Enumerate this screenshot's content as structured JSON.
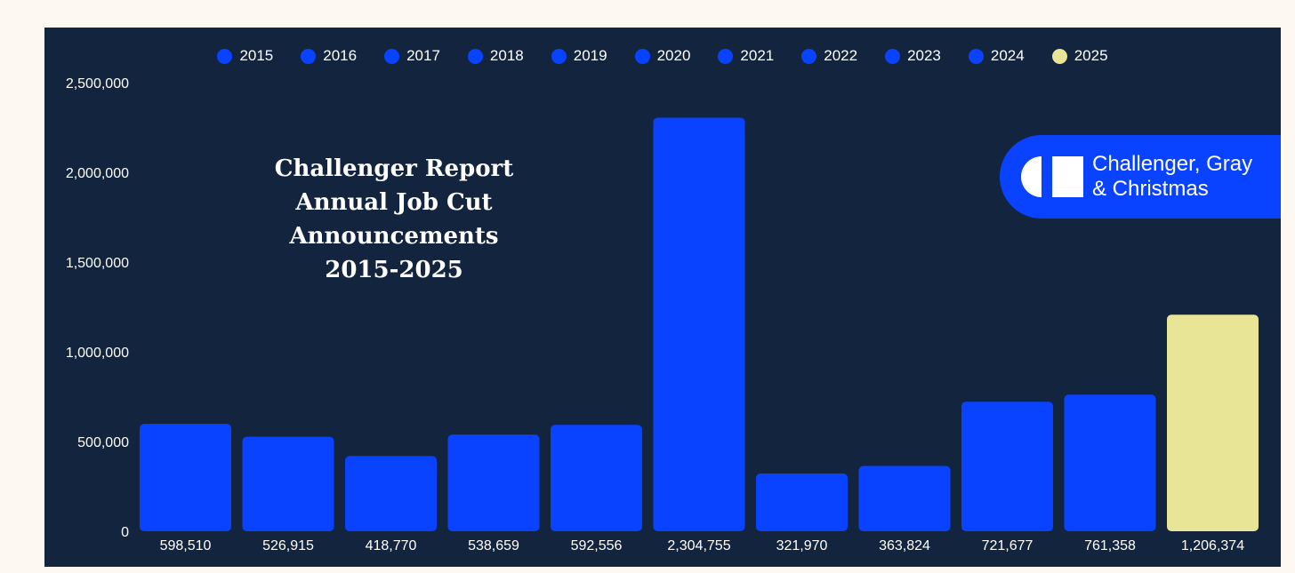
{
  "chart_data": {
    "type": "bar",
    "title_lines": [
      "Challenger Report",
      "Annual Job Cut",
      "Announcements",
      "2015-2025"
    ],
    "categories": [
      "2015",
      "2016",
      "2017",
      "2018",
      "2019",
      "2020",
      "2021",
      "2022",
      "2023",
      "2024",
      "2025"
    ],
    "values": [
      598510,
      526915,
      418770,
      538659,
      592556,
      2304755,
      321970,
      363824,
      721677,
      761358,
      1206374
    ],
    "value_labels": [
      "598,510",
      "526,915",
      "418,770",
      "538,659",
      "592,556",
      "2,304,755",
      "321,970",
      "363,824",
      "721,677",
      "761,358",
      "1,206,374"
    ],
    "colors": [
      "#0a43ff",
      "#0a43ff",
      "#0a43ff",
      "#0a43ff",
      "#0a43ff",
      "#0a43ff",
      "#0a43ff",
      "#0a43ff",
      "#0a43ff",
      "#0a43ff",
      "#e8e597"
    ],
    "yticks": [
      0,
      500000,
      1000000,
      1500000,
      2000000,
      2500000
    ],
    "ytick_labels": [
      "0",
      "500,000",
      "1,000,000",
      "1,500,000",
      "2,000,000",
      "2,500,000"
    ],
    "ylim": [
      0,
      2500000
    ],
    "legend_position": "top-center",
    "grid": false
  },
  "brand": {
    "line1": "Challenger, Gray",
    "line2": "& Christmas"
  },
  "colors": {
    "background": "#13243f",
    "bar": "#0a43ff",
    "highlight": "#e8e597"
  }
}
